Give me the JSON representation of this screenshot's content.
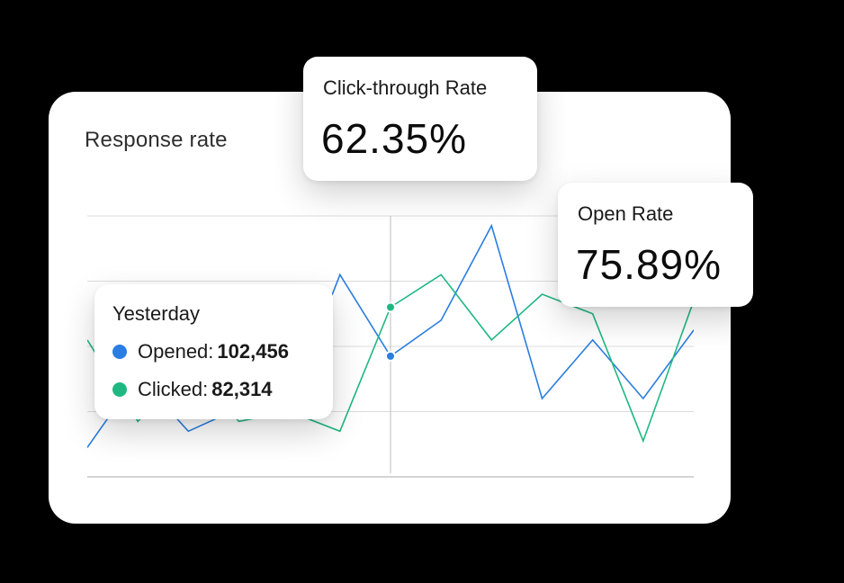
{
  "card": {
    "title": "Response rate"
  },
  "metrics": {
    "click_through": {
      "label": "Click-through Rate",
      "value": "62.35%"
    },
    "open_rate": {
      "label": "Open Rate",
      "value": "75.89%"
    }
  },
  "tooltip": {
    "title": "Yesterday",
    "opened_label": "Opened:",
    "opened_value": "102,456",
    "clicked_label": "Clicked:",
    "clicked_value": "82,314"
  },
  "colors": {
    "opened": "#2a7de1",
    "clicked": "#1fb882",
    "grid": "#dcdcdc",
    "axis": "#c6c6c6",
    "crosshair": "#bdbdbd"
  },
  "chart_data": {
    "type": "line",
    "title": "Response rate",
    "x": [
      0,
      1,
      2,
      3,
      4,
      5,
      6,
      7,
      8,
      9,
      10,
      11,
      12
    ],
    "ylim": [
      0,
      4
    ],
    "grid": true,
    "highlight_index": 6,
    "series": [
      {
        "name": "Opened",
        "values": [
          0.45,
          1.55,
          0.7,
          1.05,
          1.1,
          3.1,
          1.85,
          2.4,
          3.85,
          1.2,
          2.1,
          1.2,
          2.25
        ]
      },
      {
        "name": "Clicked",
        "values": [
          2.1,
          0.85,
          1.7,
          0.85,
          1.0,
          0.7,
          2.6,
          3.1,
          2.1,
          2.8,
          2.5,
          0.55,
          2.7
        ]
      }
    ]
  }
}
